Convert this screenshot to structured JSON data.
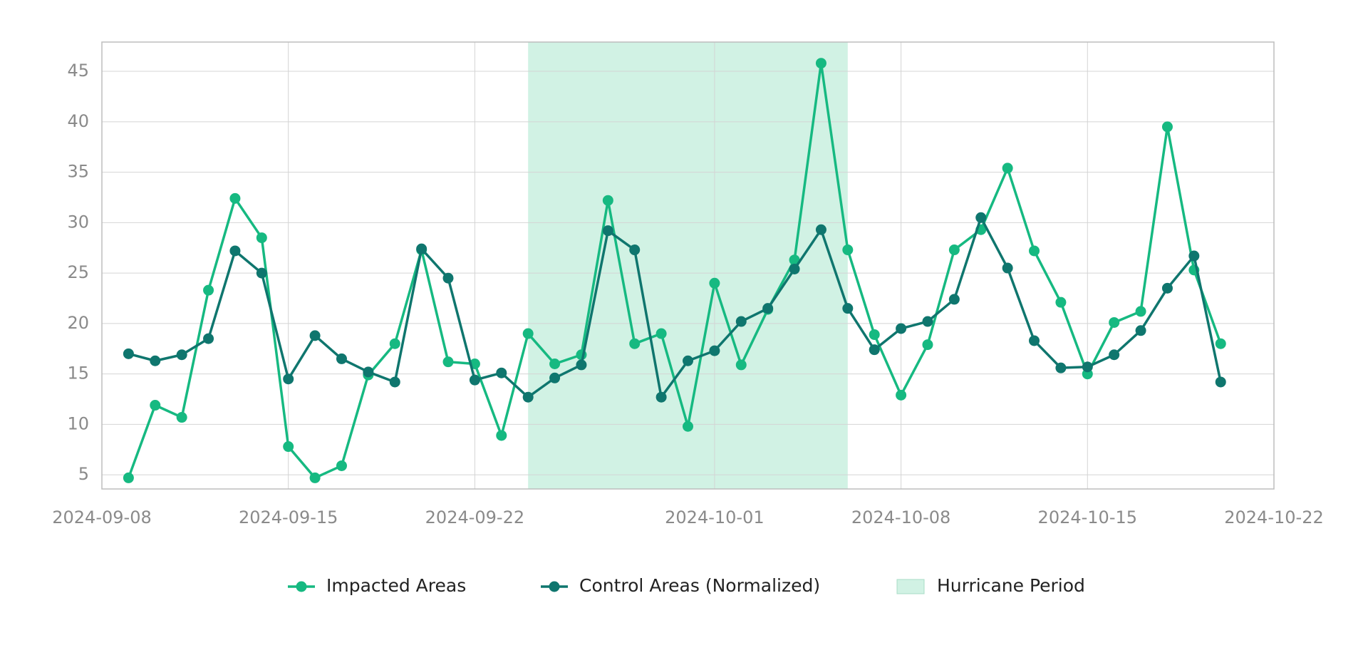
{
  "chart_data": {
    "type": "line",
    "x": [
      "2024-09-09",
      "2024-09-10",
      "2024-09-11",
      "2024-09-12",
      "2024-09-13",
      "2024-09-14",
      "2024-09-15",
      "2024-09-16",
      "2024-09-17",
      "2024-09-18",
      "2024-09-19",
      "2024-09-20",
      "2024-09-21",
      "2024-09-22",
      "2024-09-23",
      "2024-09-24",
      "2024-09-25",
      "2024-09-26",
      "2024-09-27",
      "2024-09-28",
      "2024-09-29",
      "2024-09-30",
      "2024-10-01",
      "2024-10-02",
      "2024-10-03",
      "2024-10-04",
      "2024-10-05",
      "2024-10-06",
      "2024-10-07",
      "2024-10-08",
      "2024-10-09",
      "2024-10-10",
      "2024-10-11",
      "2024-10-12",
      "2024-10-13",
      "2024-10-14",
      "2024-10-15",
      "2024-10-16",
      "2024-10-17",
      "2024-10-18",
      "2024-10-19",
      "2024-10-20"
    ],
    "series": [
      {
        "name": "Impacted Areas",
        "color": "#16b981",
        "values": [
          4.7,
          11.9,
          10.7,
          23.3,
          32.4,
          28.5,
          7.8,
          4.7,
          5.9,
          14.9,
          18.0,
          27.3,
          16.2,
          16.0,
          8.9,
          19.0,
          16.0,
          16.9,
          32.2,
          18.0,
          19.0,
          9.8,
          24.0,
          15.9,
          21.4,
          26.3,
          45.8,
          27.3,
          18.9,
          12.9,
          17.9,
          27.3,
          29.3,
          35.4,
          27.2,
          22.1,
          15.0,
          20.1,
          21.2,
          39.5,
          25.3,
          18.0
        ]
      },
      {
        "name": "Control Areas (Normalized)",
        "color": "#0f766e",
        "values": [
          17.0,
          16.3,
          16.9,
          18.5,
          27.2,
          25.0,
          14.5,
          18.8,
          16.5,
          15.2,
          14.2,
          27.4,
          24.5,
          14.4,
          15.1,
          12.7,
          14.6,
          15.9,
          29.2,
          27.3,
          12.7,
          16.3,
          17.3,
          20.2,
          21.5,
          25.4,
          29.3,
          21.5,
          17.4,
          19.5,
          20.2,
          22.4,
          30.5,
          25.5,
          18.3,
          15.6,
          15.7,
          16.9,
          19.3,
          23.5,
          26.7,
          14.2
        ]
      }
    ],
    "shaded_period": {
      "name": "Hurricane Period",
      "start": "2024-09-24",
      "end": "2024-10-06",
      "color": "#d1f2e4"
    },
    "xlim": [
      "2024-09-08",
      "2024-10-22"
    ],
    "xticks": [
      "2024-09-08",
      "2024-09-15",
      "2024-09-22",
      "2024-10-01",
      "2024-10-08",
      "2024-10-15",
      "2024-10-22"
    ],
    "ylim": [
      3.6,
      47.9
    ],
    "yticks": [
      5,
      10,
      15,
      20,
      25,
      30,
      35,
      40,
      45
    ],
    "grid": true,
    "legend": "bottom"
  }
}
